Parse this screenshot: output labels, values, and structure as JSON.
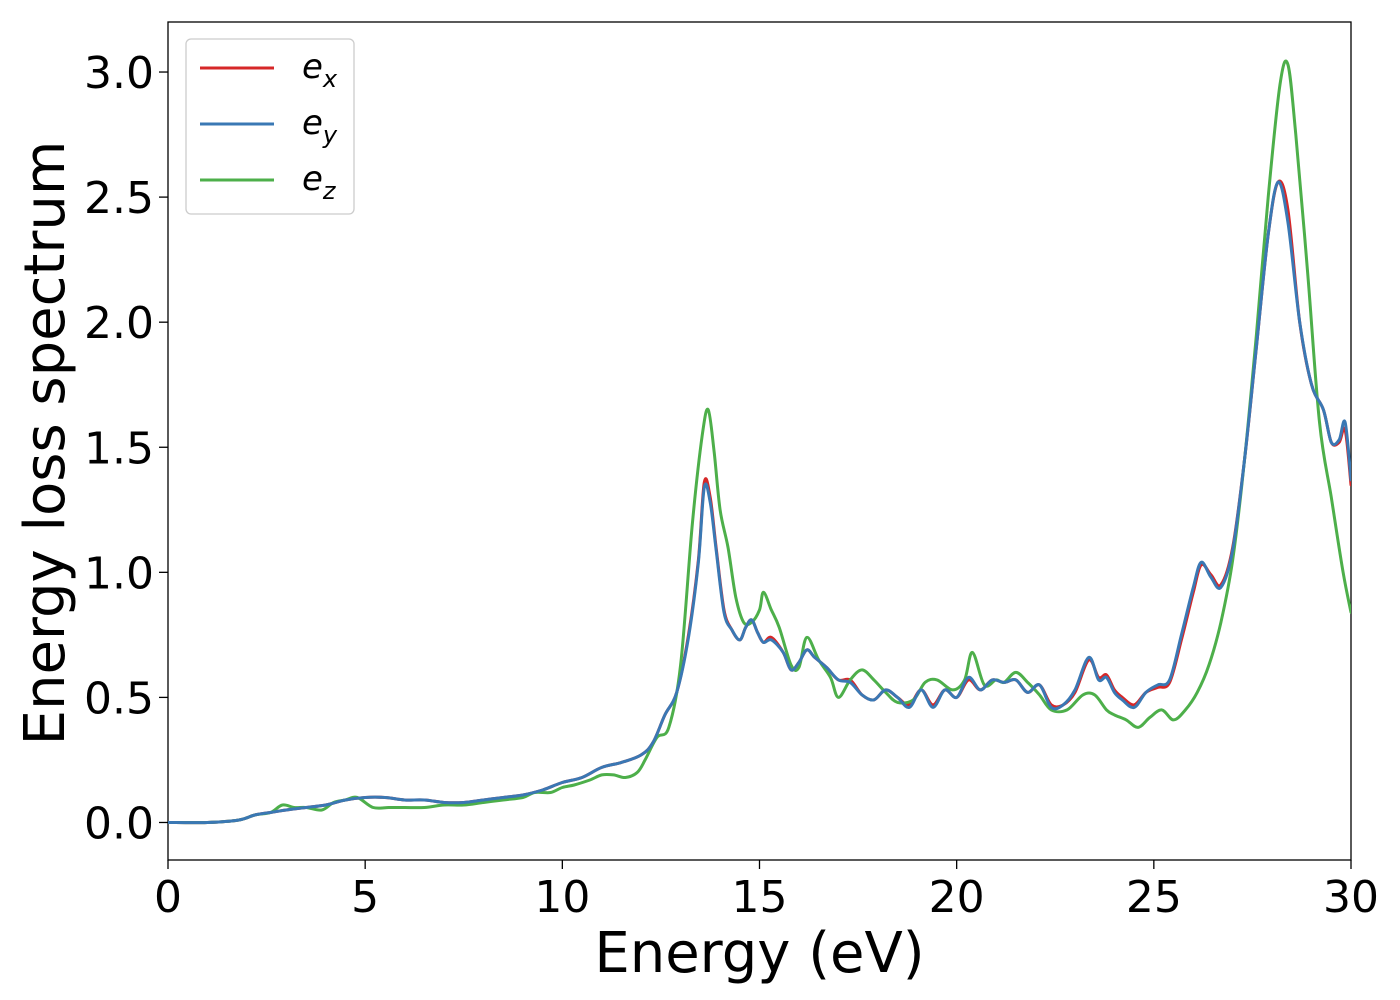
{
  "chart_data": {
    "type": "line",
    "title": "",
    "xlabel": "Energy (eV)",
    "ylabel": "Energy loss spectrum",
    "xlim": [
      0,
      30
    ],
    "ylim": [
      -0.15,
      3.2
    ],
    "xticks": [
      0,
      5,
      10,
      15,
      20,
      25,
      30
    ],
    "xtick_labels": [
      "0",
      "5",
      "10",
      "15",
      "20",
      "25",
      "30"
    ],
    "yticks": [
      0.0,
      0.5,
      1.0,
      1.5,
      2.0,
      2.5,
      3.0
    ],
    "ytick_labels": [
      "0.0",
      "0.5",
      "1.0",
      "1.5",
      "2.0",
      "2.5",
      "3.0"
    ],
    "grid": false,
    "legend_position": "top-left",
    "series": [
      {
        "name": "e_x",
        "label_base": "e",
        "label_sub": "x",
        "color": "#d62728",
        "x": [
          0,
          1,
          1.8,
          2.2,
          2.6,
          3,
          3.5,
          4,
          4.5,
          5,
          5.5,
          6,
          6.5,
          7,
          7.5,
          8,
          8.5,
          9,
          9.5,
          10,
          10.5,
          11,
          11.5,
          12,
          12.3,
          12.6,
          12.9,
          13.2,
          13.45,
          13.6,
          13.75,
          13.9,
          14.1,
          14.3,
          14.5,
          14.65,
          14.8,
          14.95,
          15.1,
          15.3,
          15.6,
          15.8,
          16,
          16.2,
          16.4,
          16.7,
          17,
          17.3,
          17.6,
          17.9,
          18.2,
          18.5,
          18.8,
          19.1,
          19.4,
          19.7,
          20,
          20.3,
          20.6,
          20.9,
          21.2,
          21.5,
          21.8,
          22.1,
          22.4,
          22.7,
          23,
          23.35,
          23.6,
          23.8,
          24,
          24.2,
          24.5,
          24.8,
          25.1,
          25.4,
          25.7,
          26,
          26.2,
          26.45,
          26.7,
          27,
          27.3,
          27.6,
          27.9,
          28.15,
          28.4,
          28.7,
          29,
          29.3,
          29.5,
          29.7,
          29.85,
          30
        ],
        "y": [
          0.0,
          0.0,
          0.01,
          0.03,
          0.04,
          0.05,
          0.06,
          0.07,
          0.09,
          0.1,
          0.1,
          0.09,
          0.09,
          0.08,
          0.08,
          0.09,
          0.1,
          0.11,
          0.13,
          0.16,
          0.18,
          0.22,
          0.24,
          0.27,
          0.32,
          0.43,
          0.52,
          0.75,
          1.05,
          1.36,
          1.3,
          1.1,
          0.85,
          0.77,
          0.73,
          0.78,
          0.81,
          0.76,
          0.72,
          0.74,
          0.68,
          0.61,
          0.64,
          0.69,
          0.66,
          0.62,
          0.57,
          0.57,
          0.51,
          0.49,
          0.53,
          0.5,
          0.47,
          0.53,
          0.47,
          0.53,
          0.5,
          0.57,
          0.53,
          0.57,
          0.56,
          0.57,
          0.52,
          0.55,
          0.47,
          0.47,
          0.52,
          0.65,
          0.58,
          0.59,
          0.53,
          0.5,
          0.47,
          0.52,
          0.54,
          0.56,
          0.73,
          0.92,
          1.03,
          0.99,
          0.95,
          1.1,
          1.45,
          1.9,
          2.35,
          2.56,
          2.45,
          2.0,
          1.75,
          1.65,
          1.52,
          1.52,
          1.57,
          1.35
        ]
      },
      {
        "name": "e_y",
        "label_base": "e",
        "label_sub": "y",
        "color": "#3a78b4",
        "x": [
          0,
          1,
          1.8,
          2.2,
          2.6,
          3,
          3.5,
          4,
          4.5,
          5,
          5.5,
          6,
          6.5,
          7,
          7.5,
          8,
          8.5,
          9,
          9.5,
          10,
          10.5,
          11,
          11.5,
          12,
          12.3,
          12.6,
          12.9,
          13.2,
          13.45,
          13.6,
          13.75,
          13.9,
          14.1,
          14.3,
          14.5,
          14.65,
          14.8,
          14.95,
          15.1,
          15.3,
          15.6,
          15.8,
          16,
          16.2,
          16.4,
          16.7,
          17,
          17.3,
          17.6,
          17.9,
          18.2,
          18.5,
          18.8,
          19.1,
          19.4,
          19.7,
          20,
          20.3,
          20.6,
          20.9,
          21.2,
          21.5,
          21.8,
          22.1,
          22.4,
          22.7,
          23,
          23.35,
          23.6,
          23.8,
          24,
          24.2,
          24.5,
          24.8,
          25.1,
          25.4,
          25.7,
          26,
          26.2,
          26.45,
          26.7,
          27,
          27.3,
          27.6,
          27.9,
          28.15,
          28.4,
          28.7,
          29,
          29.3,
          29.5,
          29.7,
          29.85,
          30
        ],
        "y": [
          0.0,
          0.0,
          0.01,
          0.03,
          0.04,
          0.05,
          0.06,
          0.07,
          0.09,
          0.1,
          0.1,
          0.09,
          0.09,
          0.08,
          0.08,
          0.09,
          0.1,
          0.11,
          0.13,
          0.16,
          0.18,
          0.22,
          0.24,
          0.27,
          0.32,
          0.43,
          0.52,
          0.74,
          1.04,
          1.34,
          1.28,
          1.09,
          0.84,
          0.77,
          0.73,
          0.78,
          0.81,
          0.76,
          0.72,
          0.73,
          0.68,
          0.61,
          0.64,
          0.69,
          0.66,
          0.62,
          0.57,
          0.56,
          0.51,
          0.49,
          0.53,
          0.5,
          0.46,
          0.53,
          0.46,
          0.53,
          0.5,
          0.58,
          0.53,
          0.57,
          0.56,
          0.57,
          0.52,
          0.55,
          0.46,
          0.47,
          0.53,
          0.66,
          0.57,
          0.58,
          0.52,
          0.49,
          0.46,
          0.52,
          0.55,
          0.57,
          0.75,
          0.94,
          1.04,
          0.98,
          0.94,
          1.09,
          1.45,
          1.9,
          2.35,
          2.56,
          2.4,
          2.0,
          1.75,
          1.65,
          1.52,
          1.53,
          1.6,
          1.37
        ]
      },
      {
        "name": "e_z",
        "label_base": "e",
        "label_sub": "z",
        "color": "#4daf4a",
        "x": [
          0,
          1,
          1.8,
          2.2,
          2.6,
          2.9,
          3.2,
          3.5,
          3.9,
          4.2,
          4.5,
          4.8,
          5.2,
          5.6,
          6,
          6.5,
          7,
          7.5,
          8,
          8.5,
          9,
          9.3,
          9.7,
          10,
          10.3,
          10.7,
          11,
          11.3,
          11.6,
          11.9,
          12.1,
          12.4,
          12.7,
          13,
          13.3,
          13.55,
          13.7,
          13.85,
          14,
          14.2,
          14.4,
          14.6,
          14.8,
          15,
          15.1,
          15.3,
          15.5,
          15.8,
          16,
          16.2,
          16.5,
          16.8,
          17,
          17.3,
          17.6,
          17.9,
          18.2,
          18.5,
          18.9,
          19.2,
          19.5,
          19.9,
          20.2,
          20.4,
          20.7,
          21,
          21.2,
          21.5,
          21.8,
          22.1,
          22.4,
          22.8,
          23.2,
          23.5,
          23.8,
          24,
          24.3,
          24.6,
          24.9,
          25.2,
          25.5,
          25.8,
          26.1,
          26.4,
          26.7,
          27,
          27.3,
          27.6,
          27.9,
          28.2,
          28.4,
          28.6,
          28.9,
          29.2,
          29.5,
          29.8,
          30
        ],
        "y": [
          0.0,
          0.0,
          0.01,
          0.03,
          0.04,
          0.07,
          0.06,
          0.06,
          0.05,
          0.08,
          0.09,
          0.1,
          0.06,
          0.06,
          0.06,
          0.06,
          0.07,
          0.07,
          0.08,
          0.09,
          0.1,
          0.12,
          0.12,
          0.14,
          0.15,
          0.17,
          0.19,
          0.19,
          0.18,
          0.2,
          0.25,
          0.34,
          0.38,
          0.63,
          1.2,
          1.55,
          1.65,
          1.48,
          1.25,
          1.1,
          0.9,
          0.8,
          0.8,
          0.85,
          0.92,
          0.85,
          0.78,
          0.63,
          0.62,
          0.74,
          0.65,
          0.58,
          0.5,
          0.57,
          0.61,
          0.57,
          0.52,
          0.48,
          0.49,
          0.56,
          0.57,
          0.53,
          0.57,
          0.68,
          0.55,
          0.57,
          0.56,
          0.6,
          0.56,
          0.51,
          0.45,
          0.45,
          0.51,
          0.51,
          0.45,
          0.43,
          0.41,
          0.38,
          0.42,
          0.45,
          0.41,
          0.45,
          0.52,
          0.63,
          0.8,
          1.05,
          1.45,
          1.95,
          2.5,
          2.95,
          3.03,
          2.75,
          2.2,
          1.6,
          1.3,
          1.0,
          0.84
        ]
      }
    ]
  }
}
